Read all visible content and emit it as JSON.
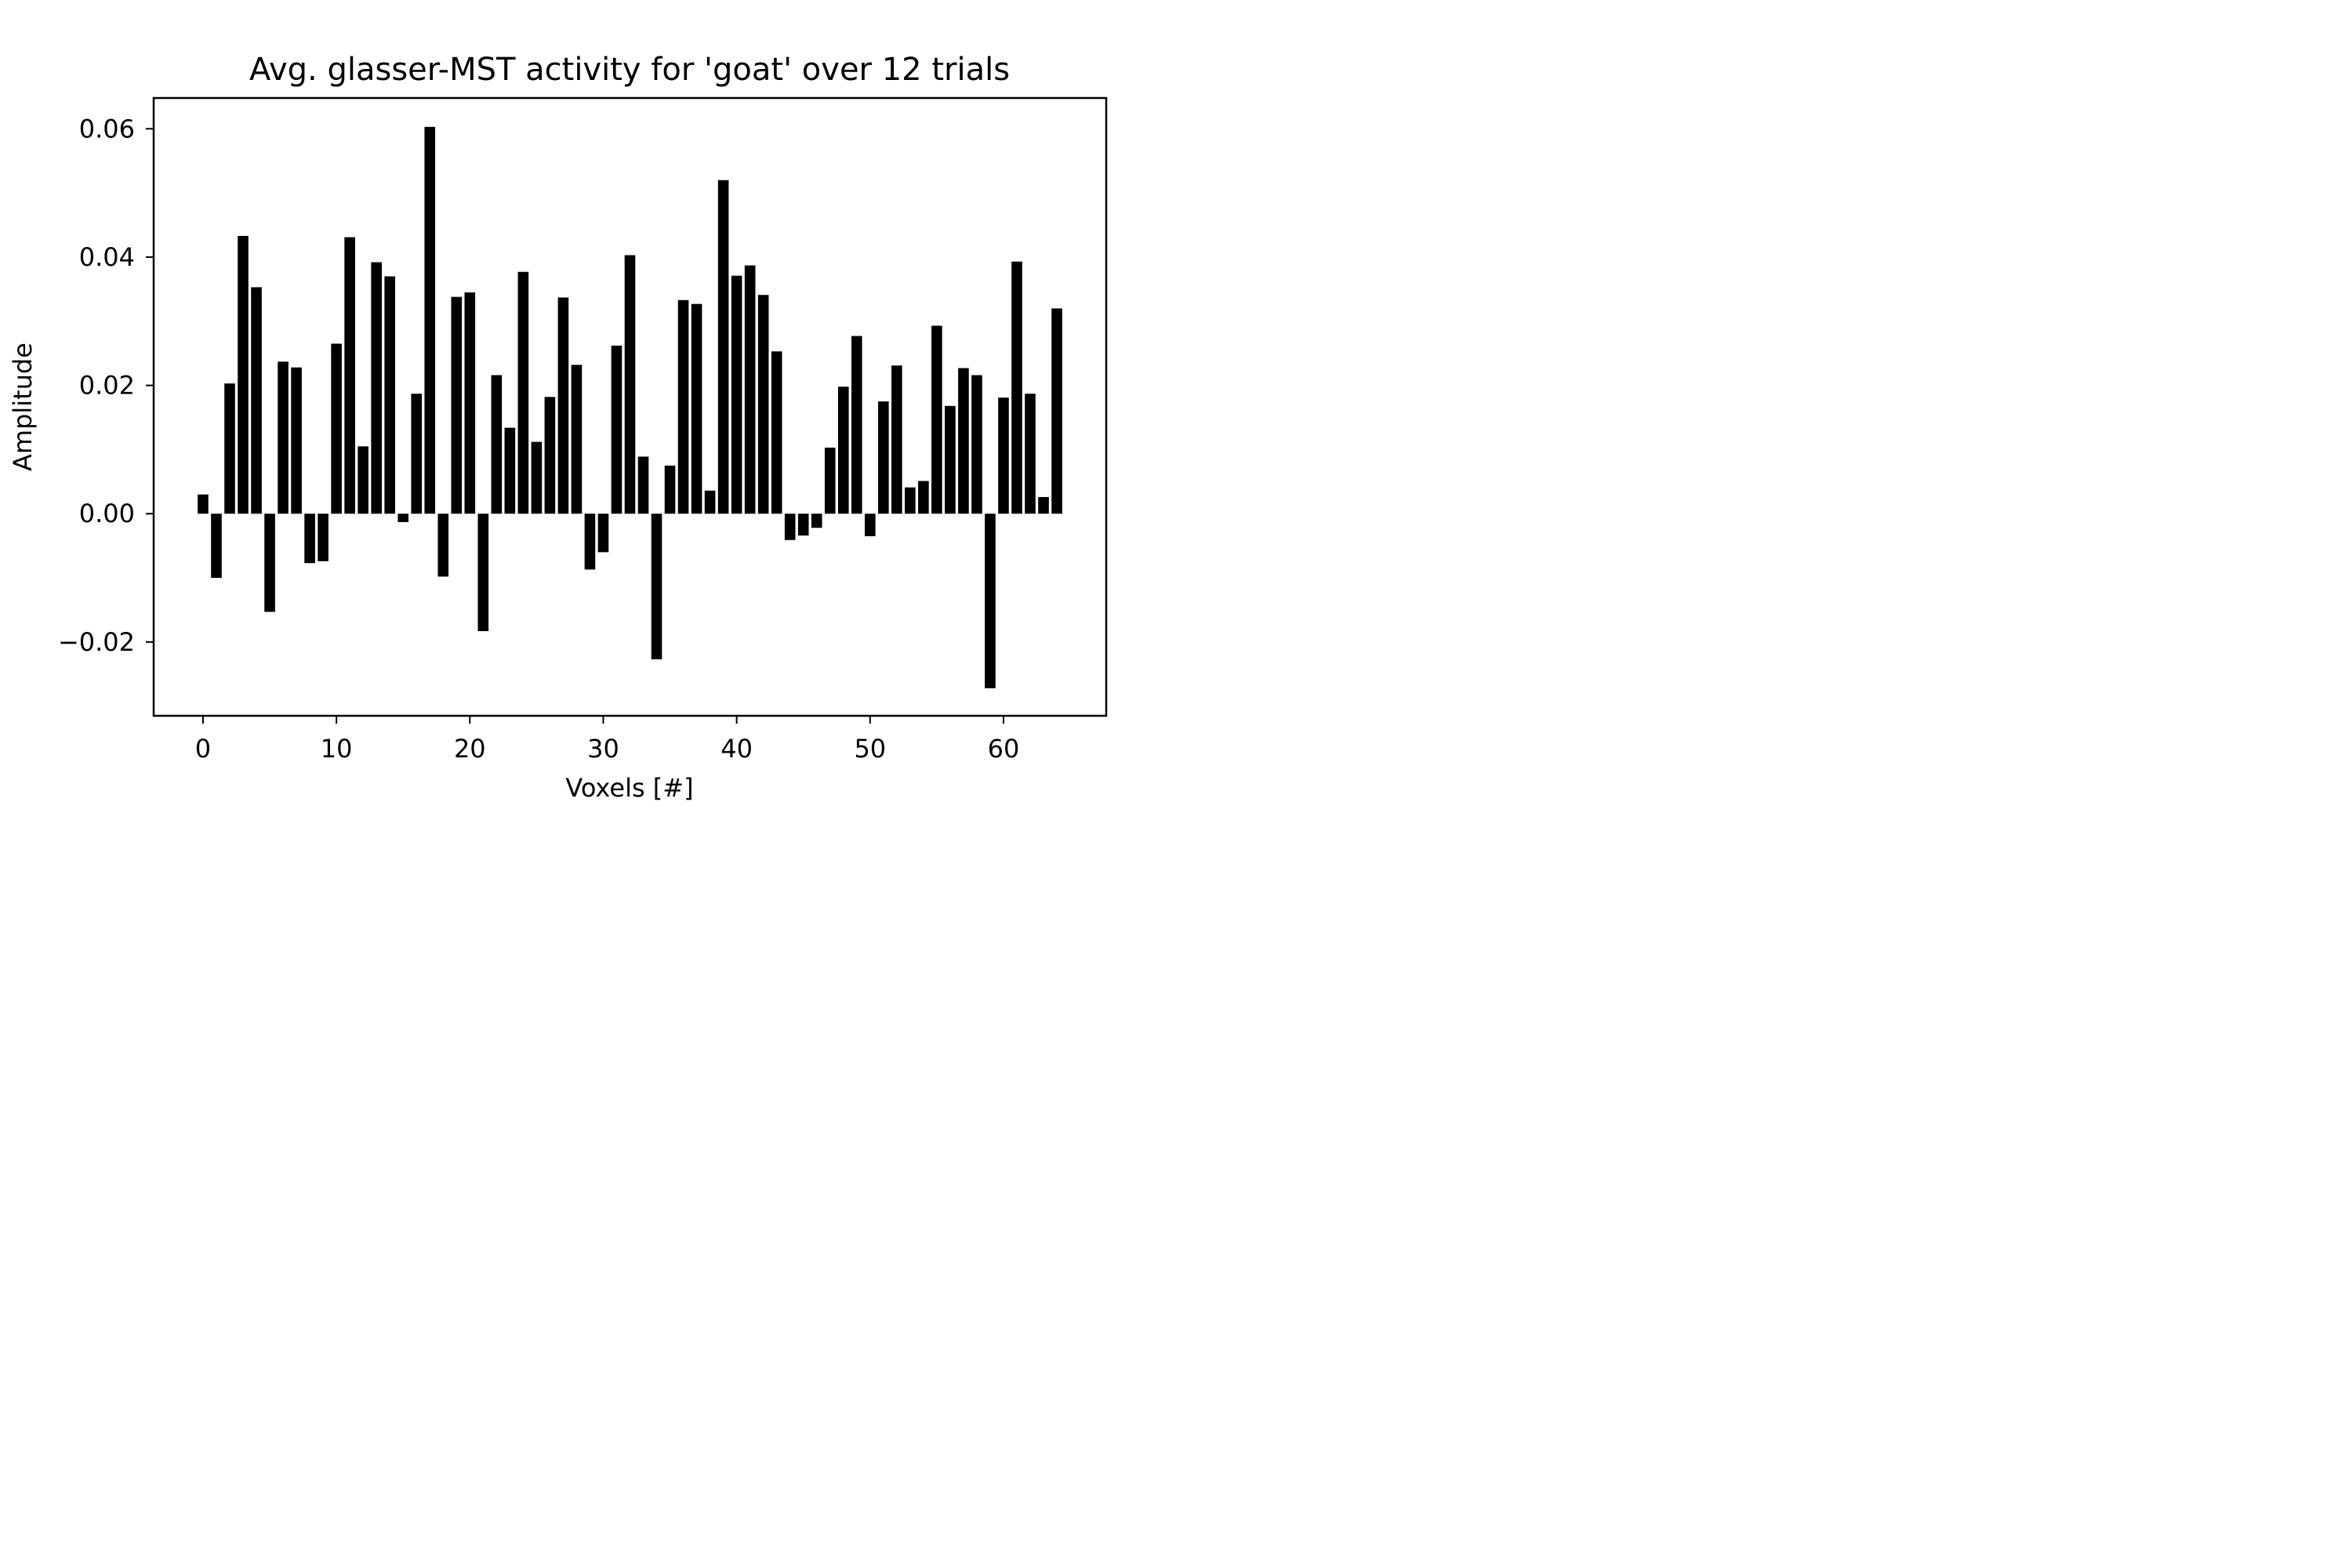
{
  "chart_data": {
    "type": "bar",
    "title": "Avg. glasser-MST activity for 'goat' over 12 trials",
    "xlabel": "Voxels [#]",
    "ylabel": "Amplitude",
    "xlim": [
      -3.7,
      67.7
    ],
    "ylim": [
      -0.0315,
      0.0648
    ],
    "xticks": [
      0,
      10,
      20,
      30,
      40,
      50,
      60
    ],
    "xtick_labels": [
      "0",
      "10",
      "20",
      "30",
      "40",
      "50",
      "60"
    ],
    "yticks": [
      -0.02,
      0.0,
      0.02,
      0.04,
      0.06
    ],
    "ytick_labels": [
      "−0.02",
      "0.00",
      "0.02",
      "0.04",
      "0.06"
    ],
    "grid": false,
    "bar_color": "#000000",
    "x": [
      0,
      1,
      2,
      3,
      4,
      5,
      6,
      7,
      8,
      9,
      10,
      11,
      12,
      13,
      14,
      15,
      16,
      17,
      18,
      19,
      20,
      21,
      22,
      23,
      24,
      25,
      26,
      27,
      28,
      29,
      30,
      31,
      32,
      33,
      34,
      35,
      36,
      37,
      38,
      39,
      40,
      41,
      42,
      43,
      44,
      45,
      46,
      47,
      48,
      49,
      50,
      51,
      52,
      53,
      54,
      55,
      56,
      57,
      58,
      59,
      60,
      61,
      62,
      63,
      64
    ],
    "values": [
      0.003,
      -0.01,
      0.0203,
      0.0433,
      0.0353,
      -0.0153,
      0.0237,
      0.0228,
      -0.0077,
      -0.0074,
      0.0265,
      0.0431,
      0.0105,
      0.0392,
      0.037,
      -0.0013,
      0.0187,
      0.0603,
      -0.0098,
      0.0338,
      0.0345,
      -0.0183,
      0.0216,
      0.0134,
      0.0377,
      0.0112,
      0.0182,
      0.0337,
      0.0232,
      -0.0087,
      -0.006,
      0.0262,
      0.0403,
      0.0089,
      -0.0227,
      0.0075,
      0.0333,
      0.0327,
      0.0036,
      0.052,
      0.0371,
      0.0387,
      0.0341,
      0.0253,
      -0.0041,
      -0.0034,
      -0.0022,
      0.0103,
      0.0198,
      0.0277,
      -0.0035,
      0.0175,
      0.0231,
      0.0041,
      0.0051,
      0.0293,
      0.0168,
      0.0227,
      0.0216,
      -0.0272,
      0.0181,
      0.0393,
      0.0187,
      0.0026,
      0.032
    ]
  }
}
